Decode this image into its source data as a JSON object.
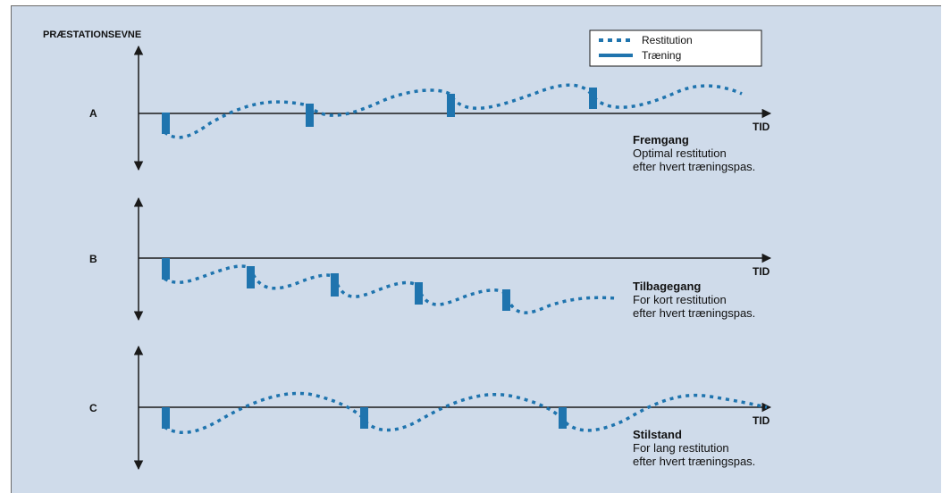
{
  "colors": {
    "background": "#cfdbea",
    "accent": "#1f74ae",
    "axis": "#1a1a1a",
    "text": "#111111"
  },
  "figure": {
    "y_axis_label": "PRÆSTATIONSEVNE",
    "legend": {
      "restitution_label": "Restitution",
      "training_label": "Træning"
    },
    "panels": [
      {
        "letter": "A",
        "time_label": "TID",
        "caption_title": "Fremgang",
        "caption_line1": "Optimal restitution",
        "caption_line2": "efter hvert træningspas."
      },
      {
        "letter": "B",
        "time_label": "TID",
        "caption_title": "Tilbagegang",
        "caption_line1": "For kort restitution",
        "caption_line2": "efter hvert træningspas."
      },
      {
        "letter": "C",
        "time_label": "TID",
        "caption_title": "Stilstand",
        "caption_line1": "For lang restitution",
        "caption_line2": "efter hvert træningspas."
      }
    ]
  }
}
